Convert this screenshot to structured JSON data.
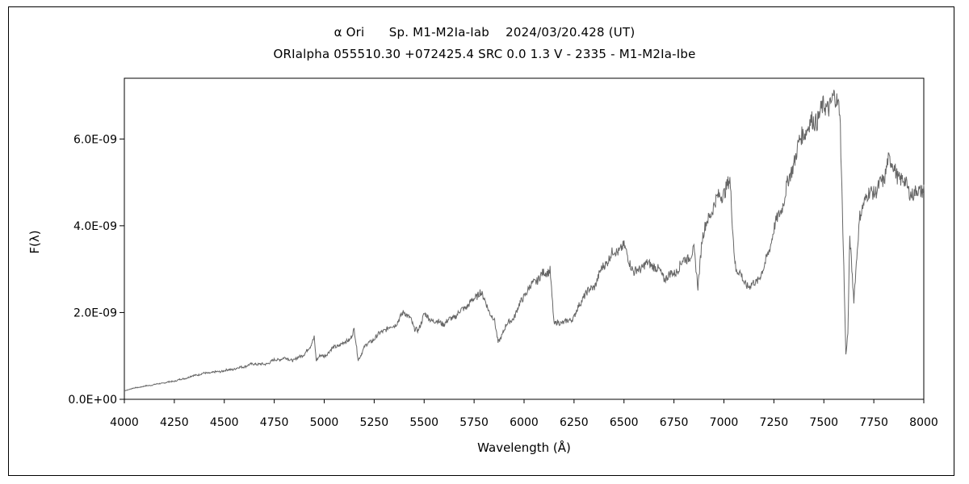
{
  "chart_data": {
    "type": "line",
    "title": "α Ori　　Sp. M1-M2Ia-Iab　 2024/03/20.428 (UT)",
    "subtitle": "ORIalpha 055510.30 +072425.4 SRC 0.0 1.3 V - 2335 - M1-M2Ia-Ibe",
    "xlabel": "Wavelength (Å)",
    "ylabel": "F(λ)",
    "xlim": [
      4000,
      8000
    ],
    "ylim": [
      0,
      7.4e-09
    ],
    "grid": false,
    "xticks": [
      4000,
      4250,
      4500,
      4750,
      5000,
      5250,
      5500,
      5750,
      6000,
      6250,
      6500,
      6750,
      7000,
      7250,
      7500,
      7750,
      8000
    ],
    "xtick_labels": [
      "4000",
      "4250",
      "4500",
      "4750",
      "5000",
      "5250",
      "5500",
      "5750",
      "6000",
      "6250",
      "6500",
      "6750",
      "7000",
      "7250",
      "7500",
      "7750",
      "8000"
    ],
    "yticks": [
      0,
      2e-09,
      4e-09,
      6e-09
    ],
    "ytick_labels": [
      "0.0E+00",
      "2.0E-09",
      "4.0E-09",
      "6.0E-09"
    ],
    "series": [
      {
        "color": "#666666",
        "x": [
          4000,
          4050,
          4100,
          4150,
          4200,
          4250,
          4300,
          4350,
          4400,
          4450,
          4500,
          4550,
          4600,
          4650,
          4700,
          4750,
          4800,
          4850,
          4900,
          4930,
          4950,
          4960,
          4980,
          5000,
          5050,
          5100,
          5130,
          5150,
          5170,
          5180,
          5200,
          5250,
          5300,
          5350,
          5400,
          5430,
          5450,
          5470,
          5500,
          5550,
          5600,
          5650,
          5700,
          5750,
          5780,
          5800,
          5830,
          5850,
          5870,
          5890,
          5910,
          5950,
          6000,
          6050,
          6100,
          6130,
          6150,
          6170,
          6200,
          6250,
          6300,
          6350,
          6400,
          6450,
          6500,
          6520,
          6550,
          6600,
          6650,
          6700,
          6750,
          6800,
          6850,
          6870,
          6890,
          6910,
          6950,
          7000,
          7030,
          7050,
          7060,
          7080,
          7100,
          7130,
          7160,
          7200,
          7250,
          7300,
          7350,
          7400,
          7450,
          7500,
          7550,
          7580,
          7600,
          7610,
          7620,
          7630,
          7650,
          7680,
          7700,
          7750,
          7800,
          7820,
          7850,
          7900,
          7950,
          8000
        ],
        "y": [
          2e-10,
          2.6e-10,
          3e-10,
          3.4e-10,
          3.8e-10,
          4.2e-10,
          4.8e-10,
          5.5e-10,
          6e-10,
          6.2e-10,
          6.6e-10,
          7e-10,
          7.6e-10,
          8.2e-10,
          8e-10,
          9e-10,
          9.5e-10,
          9e-10,
          1.05e-09,
          1.2e-09,
          1.45e-09,
          9e-10,
          1e-09,
          1e-09,
          1.2e-09,
          1.3e-09,
          1.4e-09,
          1.6e-09,
          9e-10,
          1e-09,
          1.2e-09,
          1.4e-09,
          1.6e-09,
          1.7e-09,
          2e-09,
          1.9e-09,
          1.6e-09,
          1.6e-09,
          1.95e-09,
          1.8e-09,
          1.75e-09,
          1.9e-09,
          2.1e-09,
          2.3e-09,
          2.5e-09,
          2.3e-09,
          2e-09,
          1.85e-09,
          1.3e-09,
          1.5e-09,
          1.7e-09,
          1.9e-09,
          2.4e-09,
          2.7e-09,
          2.9e-09,
          3e-09,
          1.7e-09,
          1.8e-09,
          1.75e-09,
          1.9e-09,
          2.4e-09,
          2.6e-09,
          3.1e-09,
          3.4e-09,
          3.5e-09,
          3.3e-09,
          2.9e-09,
          3.1e-09,
          3.1e-09,
          2.8e-09,
          2.9e-09,
          3.2e-09,
          3.4e-09,
          2.6e-09,
          3.7e-09,
          4e-09,
          4.5e-09,
          4.8e-09,
          5e-09,
          3.5e-09,
          3e-09,
          2.9e-09,
          2.7e-09,
          2.6e-09,
          2.7e-09,
          3e-09,
          3.9e-09,
          4.6e-09,
          5.5e-09,
          6.2e-09,
          6.4e-09,
          6.7e-09,
          6.9e-09,
          6.8e-09,
          3e-09,
          1e-09,
          1.5e-09,
          3.8e-09,
          2.3e-09,
          4.2e-09,
          4.6e-09,
          4.8e-09,
          5e-09,
          5.6e-09,
          5.3e-09,
          5e-09,
          4.7e-09,
          4.9e-09
        ]
      }
    ]
  }
}
